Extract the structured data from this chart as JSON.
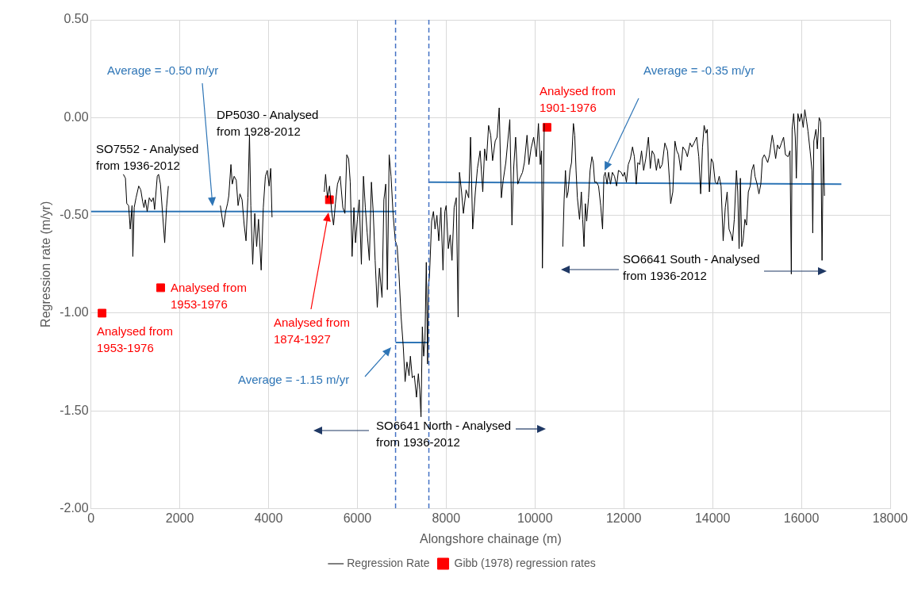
{
  "chart_data": {
    "type": "line",
    "xlabel": "Alongshore chainage (m)",
    "ylabel": "Regression rate (m/yr)",
    "xlim": [
      0,
      18000
    ],
    "xticks": [
      0,
      2000,
      4000,
      6000,
      8000,
      10000,
      12000,
      14000,
      16000,
      18000
    ],
    "ylim": [
      -2.0,
      0.5
    ],
    "yticks": [
      {
        "value": -2.0,
        "label": "-2.00"
      },
      {
        "value": -1.5,
        "label": "-1.50"
      },
      {
        "value": -1.0,
        "label": "-1.00"
      },
      {
        "value": -0.5,
        "label": "-0.50"
      },
      {
        "value": 0,
        "label": "0.00"
      },
      {
        "value": 0.5,
        "label": "0.50"
      }
    ],
    "grid": true,
    "legend": "bottom",
    "series": [
      {
        "name": "Regression Rate",
        "color": "#000000",
        "marker": "none",
        "x": [
          728,
          776,
          806,
          848,
          884,
          925,
          943,
          973,
          1015,
          1075,
          1122,
          1164,
          1194,
          1224,
          1266,
          1313,
          1361,
          1403,
          1433,
          1493,
          1522,
          1564,
          1612,
          1660,
          1701,
          1743,
          1800,
          2913,
          2985,
          3033,
          3075,
          3104,
          3152,
          3182,
          3224,
          3272,
          3313,
          3355,
          3403,
          3451,
          3492,
          3534,
          3570,
          3600,
          3642,
          3689,
          3731,
          3773,
          3833,
          3881,
          3928,
          3970,
          4012,
          4048,
          4078,
          4150,
          5254,
          5284,
          5325,
          5373,
          5421,
          5463,
          5505,
          5552,
          5612,
          5672,
          5719,
          5761,
          5803,
          5839,
          5881,
          5922,
          5958,
          6000,
          6042,
          6090,
          6137,
          6179,
          6221,
          6269,
          6316,
          6358,
          6400,
          6448,
          6496,
          6555,
          6597,
          6639,
          6675,
          6716,
          6758,
          6806,
          6854,
          6896,
          6937,
          6985,
          7033,
          7075,
          7116,
          7164,
          7194,
          7236,
          7283,
          7331,
          7373,
          7403,
          7433,
          7463,
          7493,
          7522,
          7552,
          7582,
          7600,
          7624,
          7672,
          7713,
          7749,
          7791,
          7833,
          7881,
          7928,
          7970,
          8000,
          8048,
          8090,
          8131,
          8179,
          8227,
          8269,
          8299,
          8346,
          8388,
          8448,
          8507,
          8549,
          8597,
          8657,
          8704,
          8764,
          8824,
          8866,
          8907,
          8955,
          9003,
          9045,
          9104,
          9146,
          9194,
          9242,
          9284,
          9343,
          9433,
          9481,
          9522,
          9564,
          9612,
          9660,
          9719,
          9761,
          9821,
          9863,
          9910,
          9970,
          10030,
          10078,
          10119,
          10149,
          10167,
          10209,
          10400,
          10626,
          10656,
          10686,
          10716,
          10746,
          10788,
          10823,
          10865,
          10895,
          10925,
          10955,
          11003,
          11044,
          11074,
          11104,
          11134,
          11164,
          11206,
          11241,
          11283,
          11313,
          11343,
          11385,
          11432,
          11480,
          11522,
          11552,
          11582,
          11623,
          11659,
          11701,
          11743,
          11791,
          11838,
          11880,
          11940,
          11982,
          12017,
          12059,
          12101,
          12149,
          12197,
          12238,
          12280,
          12316,
          12358,
          12400,
          12447,
          12495,
          12555,
          12597,
          12638,
          12686,
          12734,
          12776,
          12817,
          12865,
          12925,
          12985,
          13032,
          13056,
          13104,
          13152,
          13194,
          13235,
          13283,
          13331,
          13391,
          13432,
          13492,
          13534,
          13582,
          13641,
          13689,
          13731,
          13773,
          13809,
          13850,
          13880,
          13928,
          13970,
          14012,
          14059,
          14107,
          14149,
          14191,
          14238,
          14286,
          14328,
          14370,
          14418,
          14447,
          14489,
          14537,
          14567,
          14597,
          14626,
          14656,
          14686,
          14728,
          14764,
          14805,
          14847,
          14883,
          14925,
          14955,
          15002,
          15044,
          15086,
          15122,
          15164,
          15205,
          15241,
          15283,
          15343,
          15373,
          15420,
          15462,
          15504,
          15552,
          15599,
          15641,
          15701,
          15743,
          15773,
          15791,
          15826,
          15862,
          15886,
          15922,
          15958,
          15999,
          16041,
          16077,
          16119,
          16149,
          16196,
          16238,
          16256,
          16280,
          16328,
          16358,
          16400,
          16435,
          16465,
          16495,
          16519
        ],
        "values": [
          -0.29,
          -0.31,
          -0.44,
          -0.45,
          -0.57,
          -0.45,
          -0.71,
          -0.46,
          -0.41,
          -0.35,
          -0.37,
          -0.43,
          -0.46,
          -0.42,
          -0.48,
          -0.41,
          -0.43,
          -0.41,
          -0.47,
          -0.3,
          -0.29,
          -0.34,
          -0.49,
          -0.64,
          -0.46,
          -0.35,
          null,
          -0.45,
          -0.56,
          -0.48,
          -0.44,
          -0.4,
          -0.24,
          -0.34,
          -0.3,
          -0.32,
          -0.45,
          -0.39,
          -0.42,
          -0.55,
          -0.63,
          -0.41,
          -0.09,
          -0.45,
          -0.75,
          -0.49,
          -0.66,
          -0.52,
          -0.78,
          -0.46,
          -0.3,
          -0.27,
          -0.35,
          -0.26,
          -0.51,
          null,
          -0.38,
          -0.29,
          -0.41,
          -0.35,
          -0.48,
          -0.55,
          -0.44,
          -0.34,
          -0.3,
          -0.46,
          -0.49,
          -0.19,
          -0.21,
          -0.33,
          -0.71,
          -0.46,
          -0.64,
          -0.52,
          -0.42,
          -0.75,
          -0.3,
          -0.46,
          -0.59,
          -0.73,
          -0.33,
          -0.49,
          -0.73,
          -0.97,
          -0.77,
          -0.92,
          -0.42,
          -0.34,
          -0.88,
          -0.19,
          -0.3,
          -0.5,
          -0.63,
          -0.66,
          -0.8,
          -1.02,
          -1.17,
          -1.35,
          -1.25,
          -1.32,
          -1.22,
          -1.33,
          -1.32,
          -1.43,
          -1.31,
          -1.39,
          -1.53,
          -1.07,
          -1.22,
          -1.14,
          -0.74,
          -1.26,
          -0.86,
          -0.81,
          -0.53,
          -0.48,
          -0.57,
          -0.5,
          -0.63,
          -0.46,
          -0.78,
          -0.48,
          -0.45,
          -0.67,
          -0.6,
          -0.73,
          -0.46,
          -0.41,
          -1.02,
          -0.28,
          -0.38,
          -0.49,
          -0.37,
          -0.41,
          -0.1,
          -0.57,
          -0.38,
          -0.26,
          -0.17,
          -0.38,
          -0.16,
          -0.22,
          -0.04,
          -0.09,
          -0.22,
          -0.12,
          -0.1,
          0.05,
          -0.41,
          -0.32,
          -0.23,
          -0.01,
          -0.55,
          -0.25,
          -0.1,
          -0.34,
          -0.31,
          -0.28,
          -0.23,
          -0.09,
          -0.24,
          -0.16,
          -0.1,
          -0.2,
          -0.03,
          -0.24,
          -0.17,
          -0.77,
          -0.03,
          null,
          -0.66,
          -0.42,
          -0.27,
          -0.41,
          -0.38,
          -0.27,
          -0.23,
          -0.03,
          -0.09,
          -0.27,
          -0.41,
          -0.52,
          -0.38,
          -0.52,
          -0.66,
          -0.44,
          -0.53,
          -0.41,
          -0.27,
          -0.2,
          -0.23,
          -0.33,
          -0.33,
          -0.35,
          -0.45,
          -0.57,
          -0.3,
          -0.28,
          -0.34,
          -0.28,
          -0.34,
          -0.28,
          -0.3,
          -0.35,
          -0.27,
          -0.28,
          -0.3,
          -0.28,
          -0.33,
          -0.24,
          -0.21,
          -0.15,
          -0.2,
          -0.34,
          -0.23,
          -0.24,
          -0.17,
          -0.27,
          -0.21,
          -0.1,
          -0.26,
          -0.17,
          -0.19,
          -0.27,
          -0.21,
          -0.26,
          -0.24,
          -0.13,
          -0.17,
          -0.33,
          -0.44,
          -0.38,
          -0.12,
          -0.17,
          -0.19,
          -0.27,
          -0.15,
          -0.17,
          -0.2,
          -0.13,
          -0.15,
          -0.13,
          -0.1,
          -0.2,
          -0.39,
          -0.15,
          -0.04,
          -0.08,
          -0.06,
          -0.38,
          -0.21,
          -0.23,
          -0.33,
          -0.34,
          -0.3,
          -0.35,
          -0.63,
          -0.46,
          -0.38,
          -0.57,
          -0.6,
          -0.63,
          -0.52,
          -0.27,
          -0.38,
          -0.67,
          -0.31,
          -0.66,
          -0.63,
          -0.52,
          -0.55,
          -0.38,
          -0.35,
          -0.27,
          -0.24,
          -0.3,
          -0.34,
          -0.39,
          -0.34,
          -0.21,
          -0.19,
          -0.21,
          -0.23,
          -0.19,
          -0.09,
          -0.13,
          -0.21,
          -0.14,
          -0.16,
          -0.13,
          -0.1,
          -0.19,
          -0.2,
          -0.17,
          -0.8,
          -0.06,
          0.02,
          -0.1,
          -0.31,
          0.02,
          -0.02,
          0.02,
          -0.05,
          0.04,
          -0.02,
          -0.07,
          -0.17,
          -0.27,
          -0.59,
          -0.12,
          -0.06,
          -0.16,
          0.0,
          -0.02,
          -0.73,
          -0.1,
          -0.4
        ]
      },
      {
        "color": "#2e75b6",
        "marker": "none",
        "x": [
          0,
          6860
        ],
        "values": [
          -0.48,
          -0.48
        ]
      },
      {
        "color": "#2e75b6",
        "marker": "none",
        "x": [
          6860,
          7610
        ],
        "values": [
          -1.15,
          -1.15
        ]
      },
      {
        "color": "#2e75b6",
        "marker": "none",
        "x": [
          7610,
          16900
        ],
        "values": [
          -0.33,
          -0.34
        ]
      },
      {
        "name": "Gibb (1978) regression rates",
        "type": "scatter",
        "color": "#ff0000",
        "marker": "square",
        "x": [
          250,
          1570,
          5370,
          10270
        ],
        "values": [
          -1.0,
          -0.87,
          -0.42,
          -0.05
        ]
      }
    ],
    "ref_lines": [
      {
        "axis": "x",
        "value": 6860,
        "color": "#4472c4",
        "line_style": "dashed"
      },
      {
        "axis": "x",
        "value": 7610,
        "color": "#4472c4",
        "line_style": "dashed"
      }
    ],
    "annotations": [
      "Average = -0.50 m/yr",
      "SO7552 - Analysed\nfrom 1936-2012",
      "DP5030 - Analysed\nfrom 1928-2012",
      "Analysed from\n1953-1976",
      "Analysed from\n1953-1976",
      "Analysed from\n1874-1927",
      "Average = -1.15 m/yr",
      "SO6641 North - Analysed\nfrom 1936-2012",
      "Analysed from\n1901-1976",
      "Average = -0.35 m/yr",
      "SO6641 South - Analysed\nfrom 1936-2012"
    ]
  }
}
